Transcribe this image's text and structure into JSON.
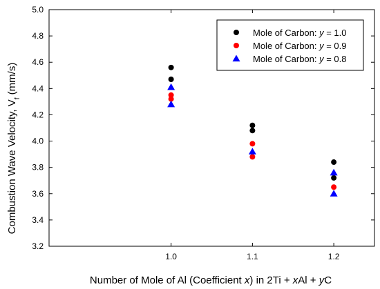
{
  "chart_data": {
    "type": "scatter",
    "title": "",
    "xlabel": {
      "pre": "Number of Mole of Al (Coefficient ",
      "var1": "x",
      "mid": ") in 2Ti + ",
      "var2": "x",
      "mid2": "Al + ",
      "var3": "y",
      "post": "C"
    },
    "ylabel": {
      "main": "Combustion Wave Velocity, V",
      "sub": "f",
      "unit": " (mm/s)"
    },
    "xlim": [
      0.85,
      1.25
    ],
    "ylim": [
      3.2,
      5.0
    ],
    "xticks": [
      "1.0",
      "1.1",
      "1.2"
    ],
    "xtick_values": [
      1.0,
      1.1,
      1.2
    ],
    "yticks": [
      "3.2",
      "3.4",
      "3.6",
      "3.8",
      "4.0",
      "4.2",
      "4.4",
      "4.6",
      "4.8",
      "5.0"
    ],
    "ytick_values": [
      3.2,
      3.4,
      3.6,
      3.8,
      4.0,
      4.2,
      4.4,
      4.6,
      4.8,
      5.0
    ],
    "legend_position": "top-right",
    "series": [
      {
        "name": "Mole of Carbon: y = 1.0",
        "legend_parts": [
          "Mole of Carbon: ",
          "y",
          " = 1.0"
        ],
        "marker": "circle",
        "color": "#000000",
        "points": [
          [
            1.0,
            4.56
          ],
          [
            1.0,
            4.47
          ],
          [
            1.1,
            4.12
          ],
          [
            1.1,
            4.08
          ],
          [
            1.2,
            3.84
          ],
          [
            1.2,
            3.72
          ]
        ]
      },
      {
        "name": "Mole of Carbon: y = 0.9",
        "legend_parts": [
          "Mole of Carbon: ",
          "y",
          " = 0.9"
        ],
        "marker": "circle",
        "color": "#ff0000",
        "points": [
          [
            1.0,
            4.35
          ],
          [
            1.0,
            4.32
          ],
          [
            1.1,
            3.98
          ],
          [
            1.1,
            3.88
          ],
          [
            1.2,
            3.65
          ]
        ]
      },
      {
        "name": "Mole of Carbon: y = 0.8",
        "legend_parts": [
          "Mole of Carbon: ",
          "y",
          " = 0.8"
        ],
        "marker": "triangle",
        "color": "#0000ff",
        "points": [
          [
            1.0,
            4.41
          ],
          [
            1.0,
            4.28
          ],
          [
            1.1,
            3.92
          ],
          [
            1.2,
            3.76
          ],
          [
            1.2,
            3.6
          ]
        ]
      }
    ]
  }
}
